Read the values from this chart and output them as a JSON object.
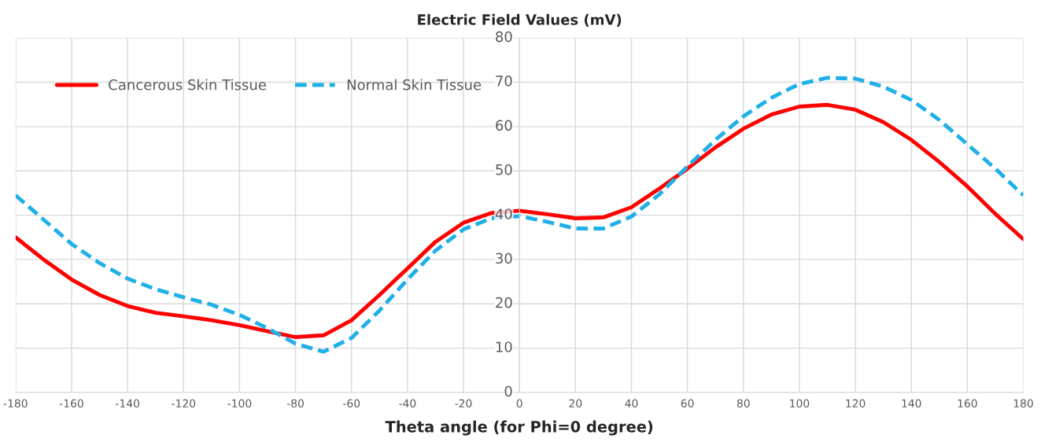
{
  "chart_data": {
    "type": "line",
    "title": "Electric Field Values (mV)",
    "xlabel": "Theta angle (for Phi=0 degree)",
    "x": [
      -180,
      -170,
      -160,
      -150,
      -140,
      -130,
      -120,
      -110,
      -100,
      -90,
      -80,
      -70,
      -60,
      -50,
      -40,
      -30,
      -20,
      -10,
      0,
      10,
      20,
      30,
      40,
      50,
      60,
      70,
      80,
      90,
      100,
      110,
      120,
      130,
      140,
      150,
      160,
      170,
      180
    ],
    "series": [
      {
        "name": "Cancerous Skin Tissue",
        "color": "#ff0000",
        "line_style": "solid",
        "values": [
          35,
          30,
          25.5,
          22,
          19.5,
          18,
          17.2,
          16.3,
          15.2,
          13.8,
          12.5,
          12.9,
          16.3,
          22,
          28,
          34,
          38.3,
          40.5,
          41,
          40.2,
          39.3,
          39.5,
          41.8,
          46,
          50.5,
          55.3,
          59.5,
          62.7,
          64.5,
          64.9,
          63.8,
          61,
          57,
          52,
          46.5,
          40.3,
          34.6
        ]
      },
      {
        "name": "Normal Skin Tissue",
        "color": "#1fb0e8",
        "line_style": "dashed",
        "values": [
          44.5,
          39,
          33.5,
          29.2,
          25.7,
          23.3,
          21.5,
          19.8,
          17.5,
          14.5,
          11,
          9.2,
          12.3,
          18.5,
          25.5,
          32,
          36.8,
          39.3,
          39.8,
          38.5,
          37,
          37,
          39.7,
          44.7,
          51,
          57,
          62.3,
          66.5,
          69.6,
          71,
          70.8,
          69,
          66,
          61.5,
          56,
          50.5,
          44.5
        ]
      }
    ],
    "xlim": [
      -180,
      180
    ],
    "xticks": [
      -180,
      -160,
      -140,
      -120,
      -100,
      -80,
      -60,
      -40,
      -20,
      0,
      20,
      40,
      60,
      80,
      100,
      120,
      140,
      160,
      180
    ],
    "ylim": [
      0,
      80
    ],
    "yticks": [
      0,
      10,
      20,
      30,
      40,
      50,
      60,
      70,
      80
    ],
    "grid": true,
    "legend": "top left",
    "marker": "none"
  }
}
